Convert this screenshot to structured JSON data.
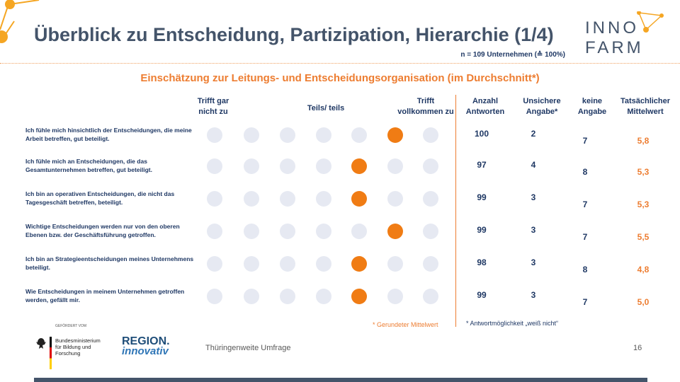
{
  "title": "Überblick zu Entscheidung, Partizipation, Hierarchie (1/4)",
  "sample": "n = 109 Unternehmen (≙ 100%)",
  "logo": {
    "line1": "INNO",
    "line2": "FARM"
  },
  "subtitle": "Einschätzung zur Leitungs- und Entscheidungsorganisation (im Durchschnitt*)",
  "scale": {
    "left_label": "Trifft gar nicht zu",
    "mid_label": "Teils/ teils",
    "right_label": "Trifft vollkommen zu",
    "points": 7
  },
  "columns": {
    "answers": "Anzahl Antworten",
    "unsure": "Unsichere Angabe*",
    "none": "keine Angabe",
    "mean": "Tatsächlicher Mittelwert"
  },
  "rows": [
    {
      "text": "Ich fühle mich hinsichtlich der Entscheidungen, die meine Arbeit betreffen, gut beteiligt.",
      "selected": 6,
      "answers": "100",
      "unsure": "2",
      "none": "7",
      "mean": "5,8"
    },
    {
      "text": "Ich fühle mich an Entscheidungen, die das Gesamtunternehmen betreffen, gut beteiligt.",
      "selected": 5,
      "answers": "97",
      "unsure": "4",
      "none": "8",
      "mean": "5,3"
    },
    {
      "text": "Ich bin an operativen Entscheidungen, die nicht das Tagesgeschäft betreffen, beteiligt.",
      "selected": 5,
      "answers": "99",
      "unsure": "3",
      "none": "7",
      "mean": "5,3"
    },
    {
      "text": "Wichtige Entscheidungen werden nur von den oberen Ebenen bzw. der Geschäftsführung getroffen.",
      "selected": 6,
      "answers": "99",
      "unsure": "3",
      "none": "7",
      "mean": "5,5"
    },
    {
      "text": "Ich bin an Strategieentscheidungen meines Unternehmens beteiligt.",
      "selected": 5,
      "answers": "98",
      "unsure": "3",
      "none": "8",
      "mean": "4,8"
    },
    {
      "text": "Wie Entscheidungen in meinem Unternehmen getroffen werden, gefällt mir.",
      "selected": 5,
      "answers": "99",
      "unsure": "3",
      "none": "7",
      "mean": "5,0"
    }
  ],
  "notes": {
    "rounded": "* Gerundeter Mittelwert",
    "unsure": "* Antwortmöglichkeit „weiß nicht“"
  },
  "footer": {
    "funded_by": "GEFÖRDERT VOM",
    "ministry": "Bundesministerium für Bildung und Forschung",
    "region_line1": "REGION.",
    "region_line2": "innovativ",
    "survey": "Thüringenweite Umfrage",
    "page": "16"
  },
  "colors": {
    "accent": "#ed7d31",
    "navy": "#1f3864",
    "dot_empty": "#e6e9f2",
    "dot_selected": "#f07c14"
  }
}
